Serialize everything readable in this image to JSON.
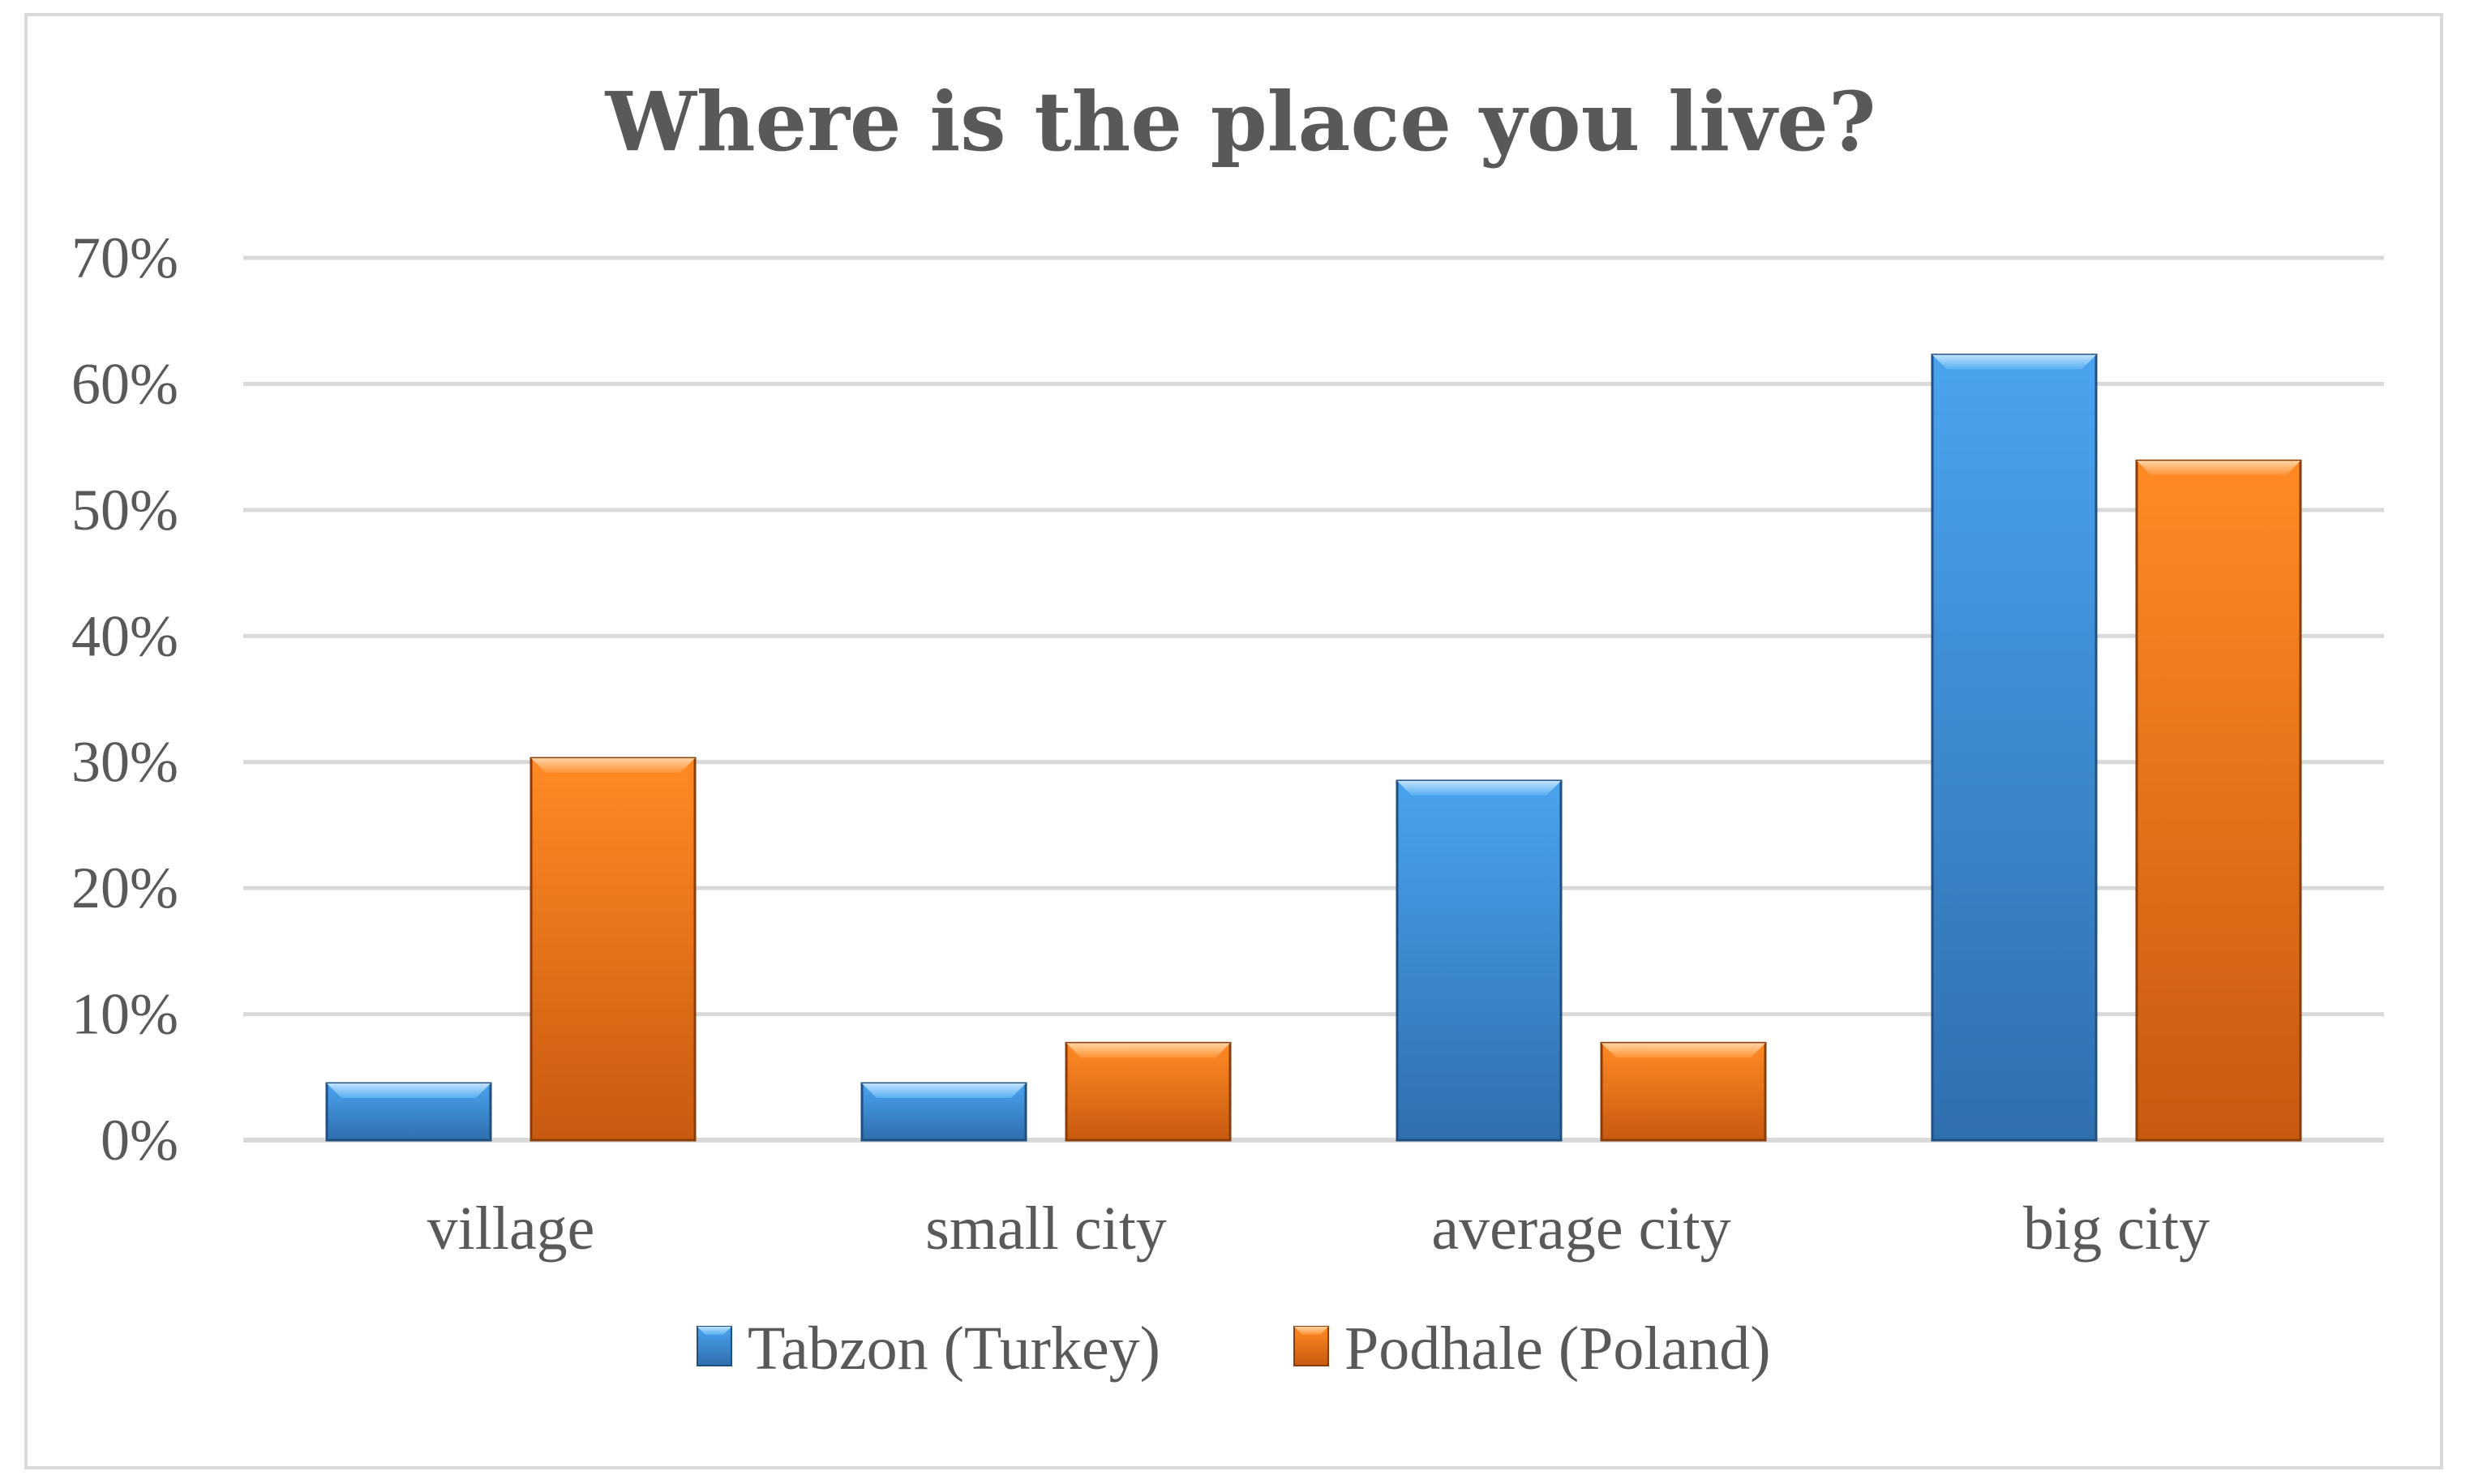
{
  "chart_data": {
    "type": "bar",
    "title": "Where is the place you live?",
    "xlabel": "",
    "ylabel": "",
    "categories": [
      "village",
      "small city",
      "average city",
      "big city"
    ],
    "series": [
      {
        "name": "Tabzon (Turkey)",
        "values": [
          4.5,
          4.5,
          28.5,
          62.3
        ],
        "color": "#3d8fdd"
      },
      {
        "name": "Podhale (Poland)",
        "values": [
          30.3,
          7.7,
          7.7,
          53.9
        ],
        "color": "#f07a1c"
      }
    ],
    "ylim": [
      0,
      70
    ],
    "yticks": [
      "0%",
      "10%",
      "20%",
      "30%",
      "40%",
      "50%",
      "60%",
      "70%"
    ],
    "grid": true,
    "legend_position": "bottom"
  }
}
